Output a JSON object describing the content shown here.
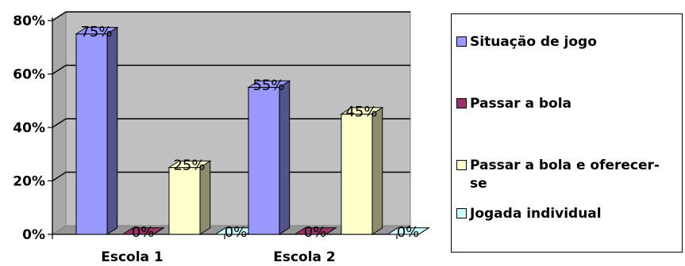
{
  "chart_data": {
    "type": "bar",
    "title": "",
    "xlabel": "",
    "ylabel": "",
    "categories": [
      "Escola 1",
      "Escola 2"
    ],
    "ylim": [
      0,
      80
    ],
    "yticks": [
      "0%",
      "20%",
      "40%",
      "60%",
      "80%"
    ],
    "y_tick_values": [
      0,
      20,
      40,
      60,
      80
    ],
    "grid": true,
    "legend_position": "right",
    "series": [
      {
        "name": "Situação de jogo",
        "values": [
          75,
          55
        ],
        "labels": [
          "75%",
          "55%"
        ],
        "color": "#9999ff"
      },
      {
        "name": "Passar a bola",
        "values": [
          0,
          0
        ],
        "labels": [
          "0%",
          "0%"
        ],
        "color": "#993366"
      },
      {
        "name": "Passar a bola e oferecer-se",
        "values": [
          25,
          45
        ],
        "labels": [
          "25%",
          "45%"
        ],
        "color": "#ffffcc"
      },
      {
        "name": "Jogada individual",
        "values": [
          0,
          0
        ],
        "labels": [
          "0%",
          "0%"
        ],
        "color": "#ccffff"
      }
    ],
    "plot_background": "#c0c0c0"
  }
}
